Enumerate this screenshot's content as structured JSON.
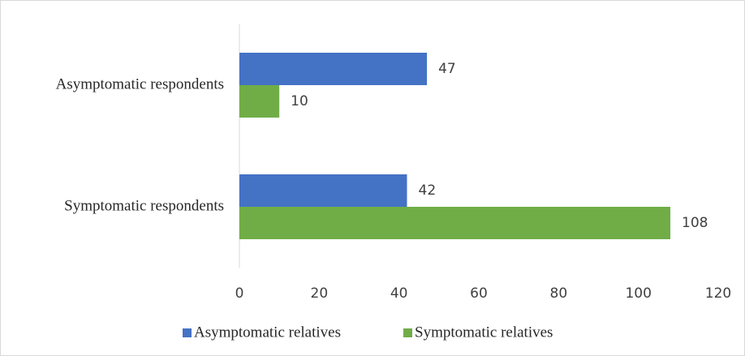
{
  "chart_data": {
    "type": "hbar",
    "categories": [
      "Asymptomatic respondents",
      "Symptomatic respondents"
    ],
    "series": [
      {
        "name": "Asymptomatic relatives",
        "color": "#4472c4",
        "values": [
          47,
          42
        ]
      },
      {
        "name": "Symptomatic relatives",
        "color": "#70ad47",
        "values": [
          10,
          108
        ]
      }
    ],
    "xlim": [
      0,
      120
    ],
    "xticks": [
      0,
      20,
      40,
      60,
      80,
      100,
      120
    ],
    "grid": false,
    "legend": "bottom"
  }
}
